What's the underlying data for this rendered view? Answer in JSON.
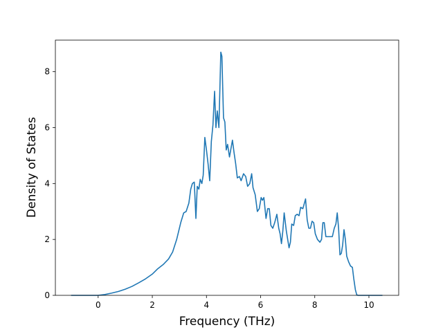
{
  "chart_data": {
    "type": "line",
    "xlabel": "Frequency (THz)",
    "ylabel": "Density of States",
    "x": [
      -1,
      0,
      0.25,
      0.5,
      0.75,
      1,
      1.25,
      1.5,
      1.75,
      2,
      2.2,
      2.4,
      2.6,
      2.75,
      2.9,
      3.05,
      3.16,
      3.25,
      3.35,
      3.42,
      3.48,
      3.55,
      3.61,
      3.66,
      3.72,
      3.77,
      3.83,
      3.88,
      3.94,
      4.0,
      4.06,
      4.12,
      4.18,
      4.24,
      4.3,
      4.35,
      4.4,
      4.46,
      4.53,
      4.57,
      4.63,
      4.68,
      4.73,
      4.78,
      4.85,
      4.96,
      5.02,
      5.08,
      5.14,
      5.22,
      5.28,
      5.37,
      5.45,
      5.52,
      5.6,
      5.67,
      5.72,
      5.8,
      5.88,
      5.95,
      6.02,
      6.07,
      6.12,
      6.2,
      6.26,
      6.32,
      6.38,
      6.45,
      6.52,
      6.6,
      6.67,
      6.72,
      6.77,
      6.82,
      6.87,
      6.95,
      7.05,
      7.1,
      7.15,
      7.22,
      7.28,
      7.35,
      7.42,
      7.48,
      7.56,
      7.66,
      7.72,
      7.78,
      7.84,
      7.9,
      7.96,
      8.02,
      8.1,
      8.19,
      8.25,
      8.3,
      8.35,
      8.41,
      8.47,
      8.56,
      8.65,
      8.72,
      8.78,
      8.83,
      8.88,
      8.93,
      8.98,
      9.03,
      9.08,
      9.13,
      9.18,
      9.25,
      9.32,
      9.39,
      9.44,
      9.5,
      9.55,
      9.6,
      10.5
    ],
    "series": [
      {
        "name": "DOS",
        "color": "#1f77b4",
        "values": [
          0,
          0,
          0.03,
          0.08,
          0.14,
          0.22,
          0.32,
          0.45,
          0.59,
          0.76,
          0.95,
          1.1,
          1.3,
          1.55,
          2.0,
          2.6,
          2.95,
          3.0,
          3.3,
          3.8,
          4.0,
          4.05,
          2.75,
          3.9,
          3.8,
          4.15,
          4.0,
          4.3,
          5.65,
          5.2,
          4.7,
          4.1,
          5.5,
          6.1,
          7.3,
          6.0,
          6.6,
          6.0,
          8.7,
          8.55,
          6.35,
          6.2,
          5.2,
          5.4,
          4.95,
          5.55,
          5.1,
          4.7,
          4.2,
          4.25,
          4.1,
          4.35,
          4.25,
          3.9,
          4.0,
          4.35,
          3.85,
          3.6,
          3.0,
          3.1,
          3.5,
          3.4,
          3.5,
          2.75,
          3.1,
          3.1,
          2.5,
          2.4,
          2.6,
          2.9,
          2.4,
          2.2,
          1.85,
          2.3,
          2.95,
          2.3,
          1.7,
          1.9,
          2.55,
          2.5,
          2.85,
          2.9,
          2.85,
          3.15,
          3.1,
          3.45,
          2.7,
          2.4,
          2.4,
          2.65,
          2.6,
          2.2,
          2.0,
          1.9,
          2.0,
          2.6,
          2.6,
          2.1,
          2.1,
          2.1,
          2.1,
          2.4,
          2.55,
          2.95,
          2.4,
          1.45,
          1.5,
          1.8,
          2.35,
          2.0,
          1.4,
          1.2,
          1.05,
          1.0,
          0.6,
          0.2,
          0.02,
          0,
          0
        ]
      }
    ],
    "xlim": [
      -1.58,
      11.1
    ],
    "ylim": [
      0,
      9.13
    ],
    "xticks": [
      0,
      2,
      4,
      6,
      8,
      10
    ],
    "yticks": [
      0,
      2,
      4,
      6,
      8
    ]
  }
}
